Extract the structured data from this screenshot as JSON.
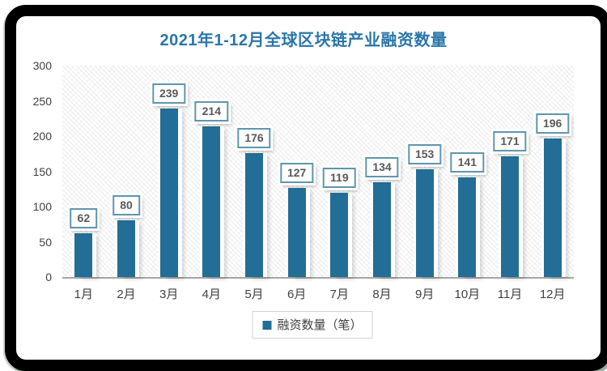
{
  "chart_data": {
    "type": "bar",
    "title": "2021年1-12月全球区块链产业融资数量",
    "categories": [
      "1月",
      "2月",
      "3月",
      "4月",
      "5月",
      "6月",
      "7月",
      "8月",
      "9月",
      "10月",
      "11月",
      "12月"
    ],
    "values": [
      62,
      80,
      239,
      214,
      176,
      127,
      119,
      134,
      153,
      141,
      171,
      196
    ],
    "series_name": "融资数量（笔）",
    "xlabel": "",
    "ylabel": "",
    "ylim": [
      0,
      300
    ],
    "yticks": [
      0,
      50,
      100,
      150,
      200,
      250,
      300
    ],
    "grid": false,
    "data_labels": true,
    "legend_position": "bottom",
    "colors": {
      "bar": "#236E96",
      "title": "#2B76A8",
      "axis_text": "#404040",
      "data_label_text": "#595959",
      "data_label_border": "#5F95AE",
      "axis_line": "#A6A6A6",
      "frame_border": "#000000",
      "plot_hatch": "#ECECEC"
    },
    "plot_background": "light diagonal hatch"
  }
}
